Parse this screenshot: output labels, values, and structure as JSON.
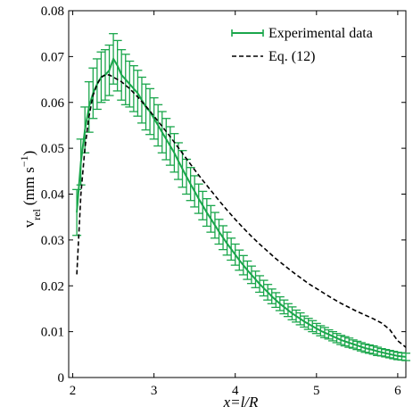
{
  "chart_data": {
    "type": "line",
    "xlabel": "x=l/R",
    "ylabel_main": "v",
    "ylabel_sub": "rel",
    "ylabel_unit": "(mm s",
    "ylabel_exp": "−1",
    "ylabel_close": ")",
    "xlim": [
      1.95,
      6.1
    ],
    "ylim": [
      0,
      0.08
    ],
    "xticks": [
      2,
      3,
      4,
      5,
      6
    ],
    "xtick_labels": [
      "2",
      "3",
      "4",
      "5",
      "6"
    ],
    "yticks": [
      0,
      0.01,
      0.02,
      0.03,
      0.04,
      0.05,
      0.06,
      0.07,
      0.08
    ],
    "ytick_labels": [
      "0",
      "0.01",
      "0.02",
      "0.03",
      "0.04",
      "0.05",
      "0.06",
      "0.07",
      "0.08"
    ],
    "legend_position": "top-right",
    "grid": false,
    "series": [
      {
        "name": "Experimental data",
        "style": "solid-errorbar",
        "color": "#1aa64b",
        "x": [
          2.05,
          2.1,
          2.15,
          2.2,
          2.25,
          2.3,
          2.35,
          2.4,
          2.45,
          2.5,
          2.55,
          2.6,
          2.65,
          2.7,
          2.75,
          2.8,
          2.85,
          2.9,
          2.95,
          3.0,
          3.05,
          3.1,
          3.15,
          3.2,
          3.25,
          3.3,
          3.35,
          3.4,
          3.45,
          3.5,
          3.55,
          3.6,
          3.65,
          3.7,
          3.75,
          3.8,
          3.85,
          3.9,
          3.95,
          4.0,
          4.05,
          4.1,
          4.15,
          4.2,
          4.25,
          4.3,
          4.35,
          4.4,
          4.45,
          4.5,
          4.55,
          4.6,
          4.65,
          4.7,
          4.75,
          4.8,
          4.85,
          4.9,
          4.95,
          5.0,
          5.05,
          5.1,
          5.15,
          5.2,
          5.25,
          5.3,
          5.35,
          5.4,
          5.45,
          5.5,
          5.55,
          5.6,
          5.65,
          5.7,
          5.75,
          5.8,
          5.85,
          5.9,
          5.95,
          6.0,
          6.05,
          6.1
        ],
        "y": [
          0.036,
          0.047,
          0.054,
          0.059,
          0.062,
          0.064,
          0.0655,
          0.066,
          0.067,
          0.0695,
          0.068,
          0.066,
          0.065,
          0.064,
          0.063,
          0.062,
          0.0605,
          0.059,
          0.058,
          0.0565,
          0.055,
          0.0535,
          0.052,
          0.0505,
          0.049,
          0.0472,
          0.0455,
          0.0438,
          0.0422,
          0.0406,
          0.039,
          0.0375,
          0.036,
          0.0346,
          0.0332,
          0.0318,
          0.0305,
          0.0292,
          0.028,
          0.0268,
          0.0256,
          0.0245,
          0.0234,
          0.0224,
          0.0214,
          0.0204,
          0.0195,
          0.0186,
          0.0177,
          0.0169,
          0.0161,
          0.0154,
          0.0147,
          0.014,
          0.0134,
          0.0128,
          0.0122,
          0.0117,
          0.0112,
          0.0107,
          0.0102,
          0.0098,
          0.0094,
          0.009,
          0.0086,
          0.0082,
          0.0079,
          0.0076,
          0.0073,
          0.007,
          0.0067,
          0.0064,
          0.0062,
          0.006,
          0.0057,
          0.0055,
          0.0053,
          0.0051,
          0.0049,
          0.0047,
          0.0046,
          0.0045
        ],
        "err": [
          0.005,
          0.005,
          0.005,
          0.0055,
          0.0055,
          0.0055,
          0.0055,
          0.0055,
          0.0055,
          0.0055,
          0.0055,
          0.0055,
          0.0055,
          0.005,
          0.005,
          0.005,
          0.005,
          0.005,
          0.005,
          0.0045,
          0.0045,
          0.0045,
          0.0045,
          0.0042,
          0.0042,
          0.004,
          0.004,
          0.0038,
          0.0036,
          0.0034,
          0.0032,
          0.0031,
          0.003,
          0.0029,
          0.0028,
          0.0027,
          0.0026,
          0.0025,
          0.0024,
          0.0023,
          0.0022,
          0.0021,
          0.002,
          0.0019,
          0.0018,
          0.0018,
          0.0017,
          0.0017,
          0.0016,
          0.0016,
          0.0015,
          0.0015,
          0.0014,
          0.0014,
          0.0013,
          0.0013,
          0.0012,
          0.0012,
          0.0012,
          0.0011,
          0.0011,
          0.0011,
          0.001,
          0.001,
          0.001,
          0.001,
          0.001,
          0.001,
          0.0009,
          0.0009,
          0.0009,
          0.0009,
          0.0009,
          0.0009,
          0.0009,
          0.0008,
          0.0008,
          0.0008,
          0.0008,
          0.0008,
          0.0008,
          0.0008
        ]
      },
      {
        "name": "Eq. (12)",
        "style": "dashed",
        "color": "#000000",
        "x": [
          2.05,
          2.1,
          2.15,
          2.2,
          2.25,
          2.3,
          2.35,
          2.4,
          2.45,
          2.5,
          2.6,
          2.7,
          2.8,
          2.9,
          3.0,
          3.1,
          3.2,
          3.3,
          3.4,
          3.5,
          3.6,
          3.7,
          3.8,
          3.9,
          4.0,
          4.1,
          4.2,
          4.3,
          4.4,
          4.5,
          4.6,
          4.7,
          4.8,
          4.9,
          5.0,
          5.1,
          5.2,
          5.3,
          5.4,
          5.5,
          5.6,
          5.7,
          5.8,
          5.9,
          6.0,
          6.1
        ],
        "y": [
          0.0225,
          0.04,
          0.05,
          0.057,
          0.0615,
          0.064,
          0.0655,
          0.066,
          0.066,
          0.0655,
          0.0645,
          0.063,
          0.0612,
          0.0592,
          0.057,
          0.0548,
          0.0525,
          0.0501,
          0.0477,
          0.0453,
          0.043,
          0.0408,
          0.0386,
          0.0365,
          0.0345,
          0.0326,
          0.0308,
          0.0291,
          0.0275,
          0.0259,
          0.0245,
          0.0231,
          0.0218,
          0.0205,
          0.0194,
          0.0183,
          0.0172,
          0.0162,
          0.0153,
          0.0144,
          0.0136,
          0.0128,
          0.0119,
          0.0105,
          0.008,
          0.0066
        ]
      }
    ]
  }
}
